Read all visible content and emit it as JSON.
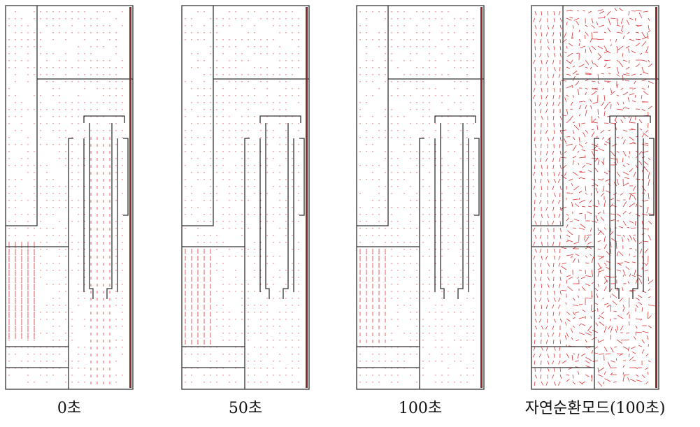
{
  "panels": [
    {
      "caption": "0초"
    },
    {
      "caption": "50초"
    },
    {
      "caption": "100초"
    },
    {
      "caption": "자연순환모드(100초)"
    }
  ]
}
